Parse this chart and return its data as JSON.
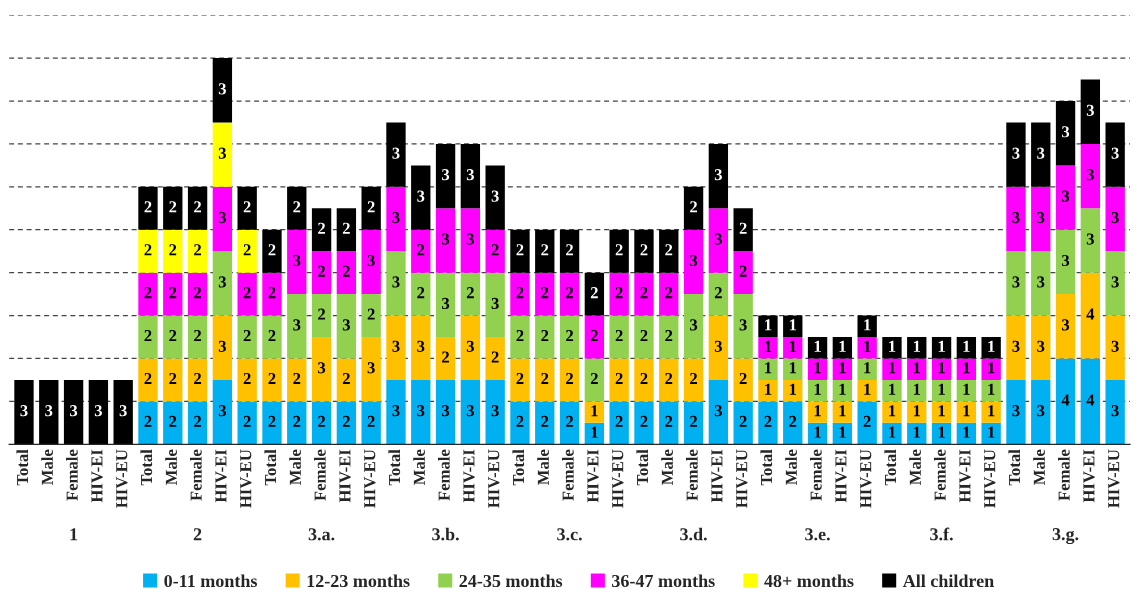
{
  "chart_data": {
    "type": "bar",
    "stacked": true,
    "categories": [
      "Total",
      "Male",
      "Female",
      "HIV-EI",
      "HIV-EU",
      "Total",
      "Male",
      "Female",
      "HIV-EI",
      "HIV-EU",
      "Total",
      "Male",
      "Female",
      "HIV-EI",
      "HIV-EU",
      "Total",
      "Male",
      "Female",
      "HIV-EI",
      "HIV-EU",
      "Total",
      "Male",
      "Female",
      "HIV-EI",
      "HIV-EU",
      "Total",
      "Male",
      "Female",
      "HIV-EI",
      "HIV-EU",
      "Total",
      "Male",
      "Female",
      "HIV-EI",
      "HIV-EU",
      "Total",
      "Male",
      "Female",
      "HIV-EI",
      "HIV-EU",
      "Total",
      "Male",
      "Female",
      "HIV-EI",
      "HIV-EU"
    ],
    "annotations": [
      "1",
      "2",
      "3.a.",
      "3.b.",
      "3.c.",
      "3.d.",
      "3.e.",
      "3.f.",
      "3.g."
    ],
    "ylim": [
      0,
      20
    ],
    "yticks": [
      {
        "value": 2,
        "label": null
      },
      {
        "value": 4,
        "label": null
      },
      {
        "value": 6,
        "label": null
      },
      {
        "value": 8,
        "label": null
      },
      {
        "value": 10,
        "label": null
      },
      {
        "value": 12,
        "label": null
      },
      {
        "value": 14,
        "label": null
      },
      {
        "value": 16,
        "label": null
      },
      {
        "value": 18,
        "label": null
      },
      {
        "value": 20,
        "label": null
      }
    ],
    "grid": "y",
    "tick_labels": "x",
    "data_labels": true,
    "legend": "bottom",
    "series": [
      {
        "name": "0-11 months",
        "color": "#00b0f0",
        "values": [
          null,
          null,
          null,
          null,
          null,
          2,
          2,
          2,
          3,
          2,
          2,
          2,
          2,
          2,
          2,
          3,
          3,
          3,
          3,
          3,
          2,
          2,
          2,
          1,
          2,
          2,
          2,
          2,
          3,
          2,
          2,
          2,
          1,
          1,
          2,
          1,
          1,
          1,
          1,
          1,
          3,
          3,
          4,
          4,
          3
        ]
      },
      {
        "name": "12-23 months",
        "color": "#ffc000",
        "values": [
          null,
          null,
          null,
          null,
          null,
          2,
          2,
          2,
          3,
          2,
          2,
          2,
          3,
          2,
          3,
          3,
          3,
          2,
          3,
          2,
          2,
          2,
          2,
          1,
          2,
          2,
          2,
          2,
          3,
          2,
          1,
          1,
          1,
          1,
          1,
          1,
          1,
          1,
          1,
          1,
          3,
          3,
          3,
          4,
          3
        ]
      },
      {
        "name": "24-35 months",
        "color": "#92d050",
        "values": [
          null,
          null,
          null,
          null,
          null,
          2,
          2,
          2,
          3,
          2,
          2,
          3,
          2,
          3,
          2,
          3,
          2,
          3,
          2,
          3,
          2,
          2,
          2,
          2,
          2,
          2,
          2,
          3,
          2,
          3,
          1,
          1,
          1,
          1,
          1,
          1,
          1,
          1,
          1,
          1,
          3,
          3,
          3,
          3,
          3
        ]
      },
      {
        "name": "36-47 months",
        "color": "#ff00ff",
        "values": [
          null,
          null,
          null,
          null,
          null,
          2,
          2,
          2,
          3,
          2,
          2,
          3,
          2,
          2,
          3,
          3,
          2,
          3,
          3,
          2,
          2,
          2,
          2,
          2,
          2,
          2,
          2,
          3,
          3,
          2,
          1,
          1,
          1,
          1,
          1,
          1,
          1,
          1,
          1,
          1,
          3,
          3,
          3,
          3,
          3
        ]
      },
      {
        "name": "48+ months",
        "color": "#ffff00",
        "values": [
          null,
          null,
          null,
          null,
          null,
          2,
          2,
          2,
          3,
          2,
          null,
          null,
          null,
          null,
          null,
          null,
          null,
          null,
          null,
          null,
          null,
          null,
          null,
          null,
          null,
          null,
          null,
          null,
          null,
          null,
          null,
          null,
          null,
          null,
          null,
          null,
          null,
          null,
          null,
          null,
          null,
          null,
          null,
          null,
          null
        ]
      },
      {
        "name": "All children",
        "color": "#000000",
        "values": [
          3,
          3,
          3,
          3,
          3,
          2,
          2,
          2,
          3,
          2,
          2,
          2,
          2,
          2,
          2,
          3,
          3,
          3,
          3,
          3,
          2,
          2,
          2,
          2,
          2,
          2,
          2,
          2,
          3,
          2,
          1,
          1,
          1,
          1,
          1,
          1,
          1,
          1,
          1,
          1,
          3,
          3,
          3,
          3,
          3
        ]
      }
    ]
  }
}
